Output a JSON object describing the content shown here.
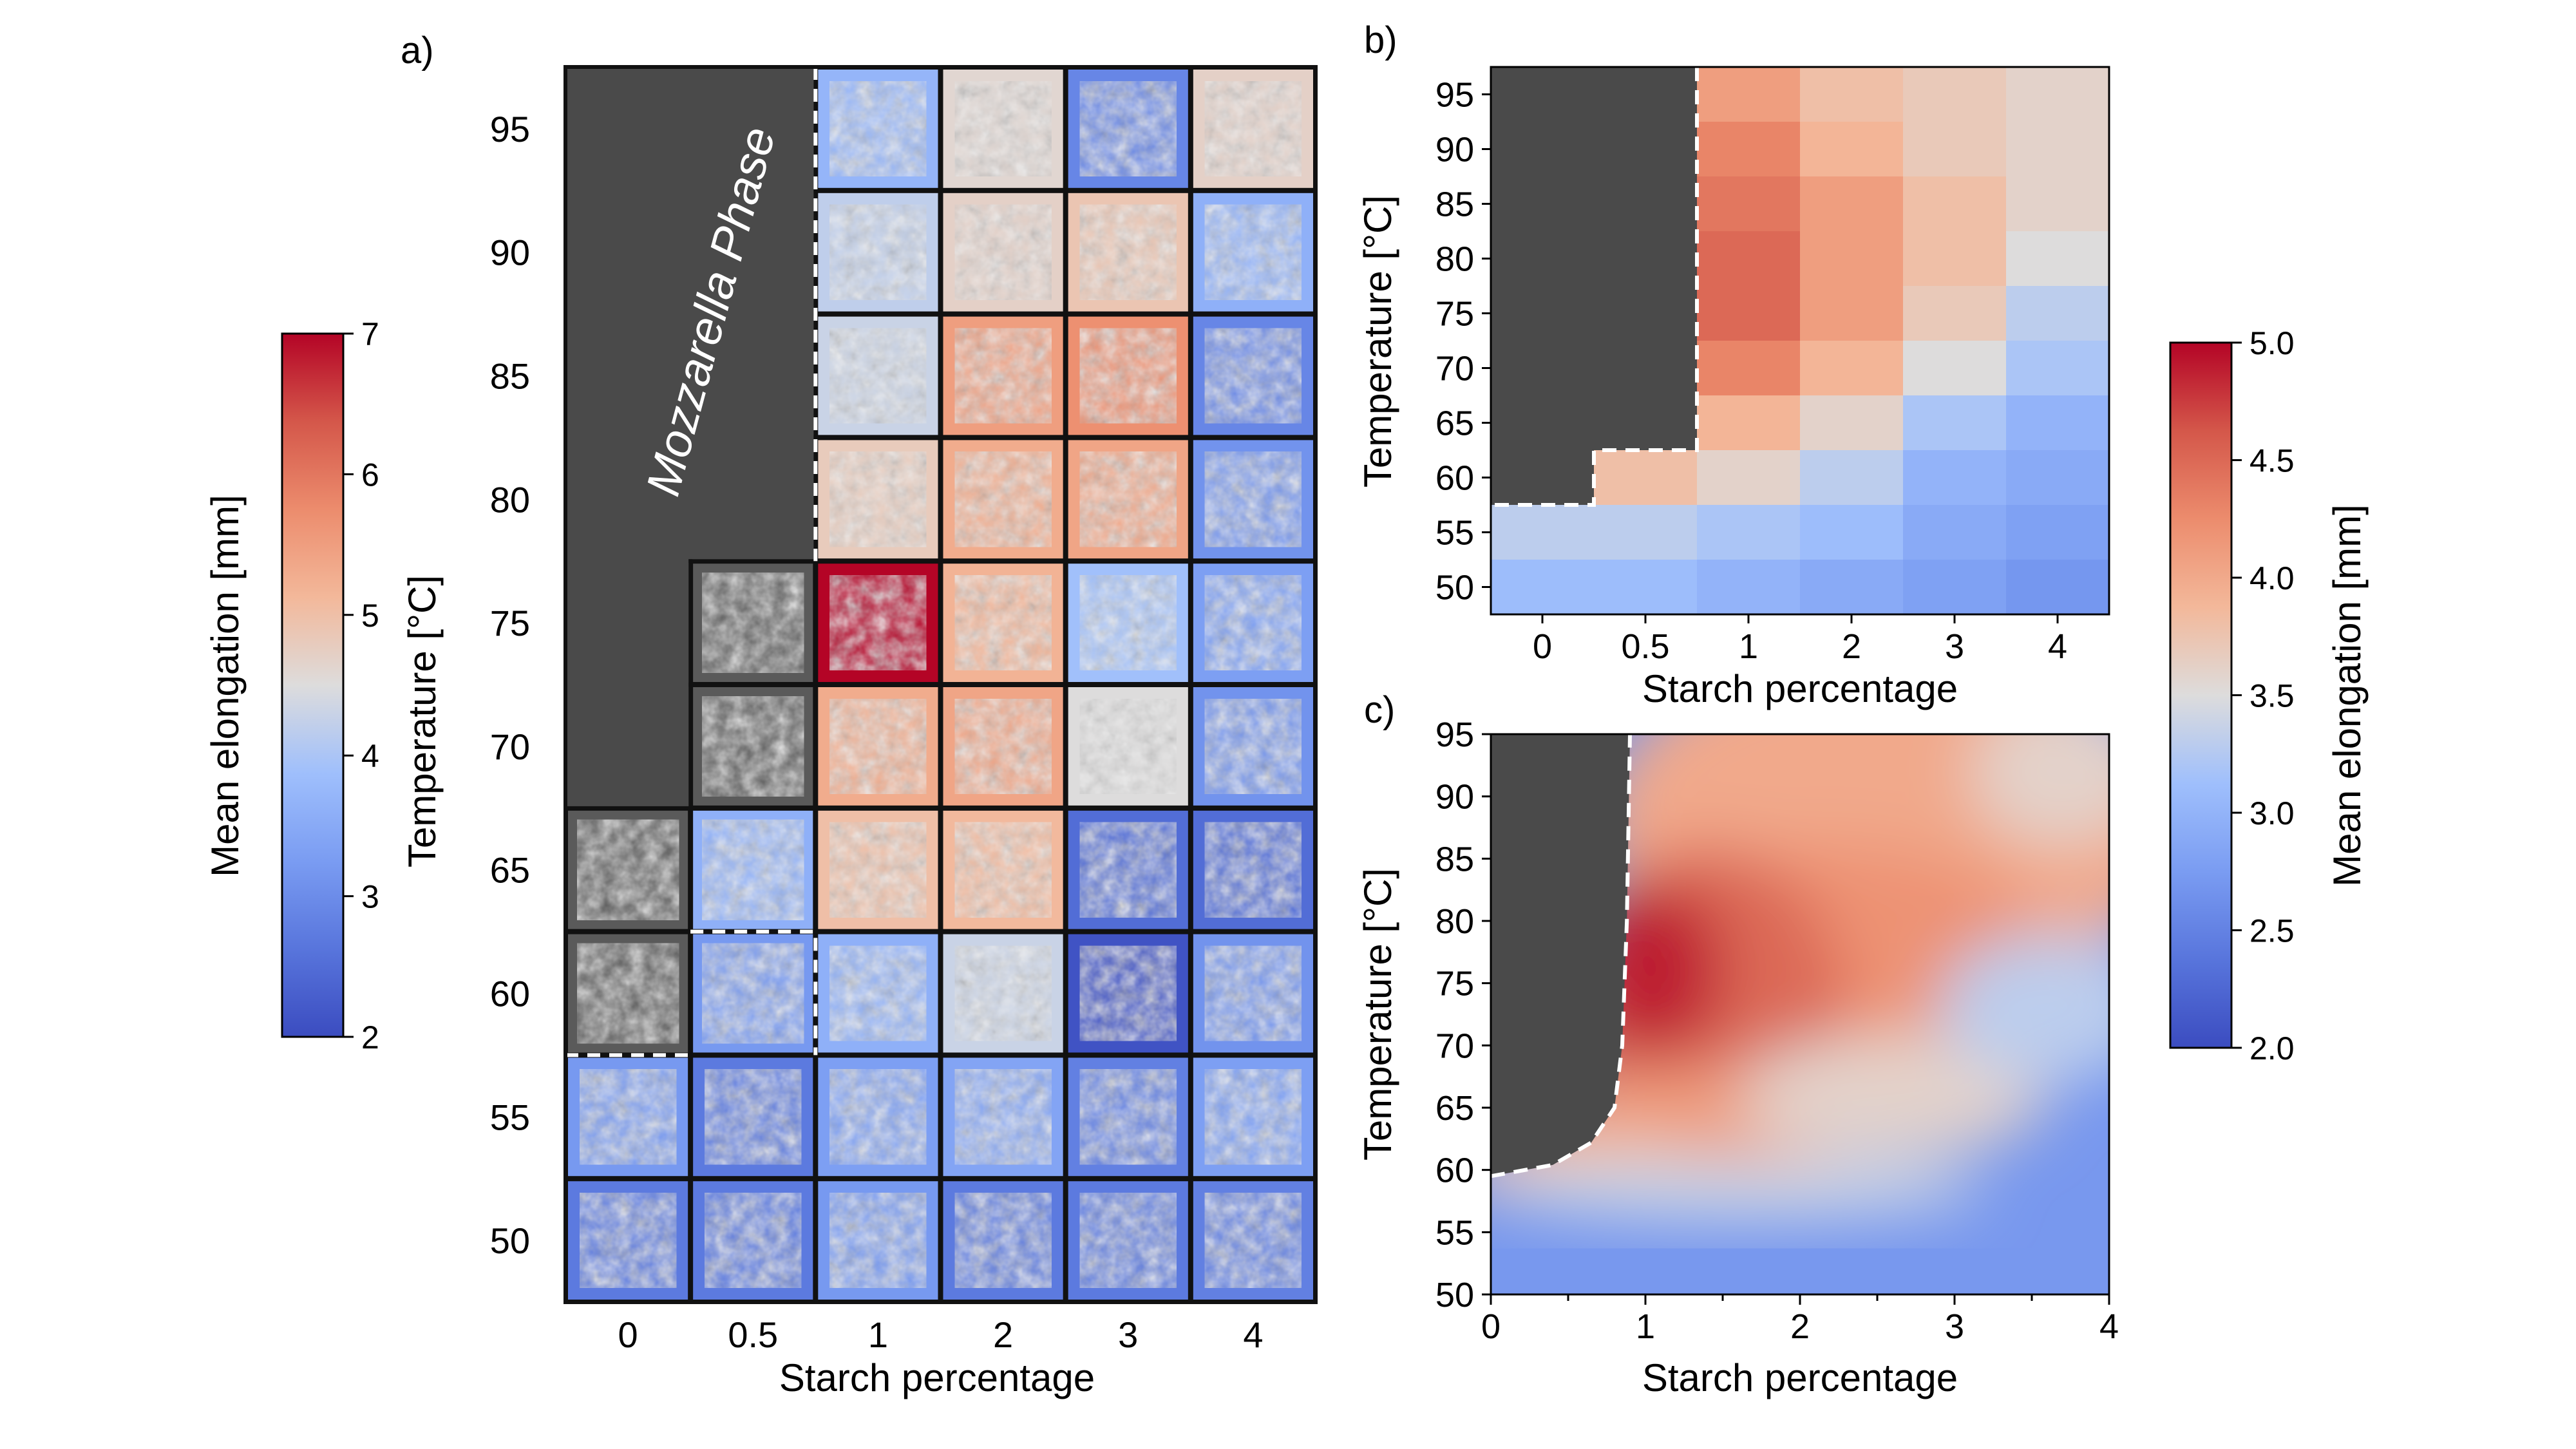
{
  "colors": {
    "cold": "#3b4cc0",
    "neutral": "#dddcdc",
    "warm": "#b40426",
    "mozzarella": "#4a4a4a",
    "boundary": "#ffffff"
  },
  "chart_data": [
    {
      "panel": "a",
      "panel_label": "a)",
      "type": "heatmap",
      "title": "",
      "xlabel": "Starch percentage",
      "ylabel": "Temperature [°C]",
      "x_categories": [
        "0",
        "0.5",
        "1",
        "2",
        "3",
        "4"
      ],
      "y_categories": [
        "95",
        "90",
        "85",
        "80",
        "75",
        "70",
        "65",
        "60",
        "55",
        "50"
      ],
      "region_label": "Mozzarella Phase",
      "mozzarella_cells": [
        [
          0,
          0
        ],
        [
          0,
          1
        ],
        [
          0,
          2
        ],
        [
          0,
          3
        ],
        [
          0,
          4
        ],
        [
          0,
          5
        ],
        [
          1,
          0
        ],
        [
          1,
          1
        ],
        [
          1,
          2
        ],
        [
          1,
          3
        ]
      ],
      "cell_texture": "grayscale micrograph thumbnail inside each coloured frame",
      "values_mm": [
        [
          null,
          null,
          3.7,
          4.6,
          2.9,
          4.7
        ],
        [
          null,
          null,
          4.2,
          4.7,
          4.9,
          3.6
        ],
        [
          null,
          null,
          4.3,
          5.5,
          5.7,
          2.9
        ],
        [
          null,
          null,
          4.8,
          5.3,
          5.4,
          3.1
        ],
        [
          null,
          3.6,
          7.0,
          5.2,
          3.9,
          3.3
        ],
        [
          null,
          3.6,
          5.3,
          5.4,
          4.5,
          3.1
        ],
        [
          3.5,
          3.6,
          5.0,
          5.1,
          2.5,
          2.5
        ],
        [
          3.5,
          3.2,
          3.6,
          4.3,
          2.1,
          3.1
        ],
        [
          3.2,
          2.7,
          3.3,
          3.4,
          2.8,
          3.3
        ],
        [
          2.7,
          2.7,
          3.2,
          2.7,
          2.7,
          2.8
        ]
      ],
      "colorbar": {
        "label": "Mean elongation [mm]",
        "ticks": [
          "2",
          "3",
          "4",
          "5",
          "6",
          "7"
        ],
        "range": [
          2,
          7
        ],
        "colormap": "coolwarm",
        "position": "left"
      }
    },
    {
      "panel": "b",
      "panel_label": "b)",
      "type": "heatmap",
      "title": "",
      "xlabel": "Starch percentage",
      "ylabel": "Temperature [°C]",
      "x_ticks": [
        "0",
        "0.5",
        "1",
        "2",
        "3",
        "4"
      ],
      "y_ticks": [
        "95",
        "90",
        "85",
        "80",
        "75",
        "70",
        "65",
        "60",
        "55",
        "50"
      ],
      "mozzarella_boundary": "dashed white line",
      "values_mm": [
        [
          null,
          null,
          4.1,
          3.8,
          3.7,
          3.6
        ],
        [
          null,
          null,
          4.3,
          3.9,
          3.7,
          3.6
        ],
        [
          null,
          null,
          4.4,
          4.1,
          3.8,
          3.6
        ],
        [
          null,
          null,
          4.5,
          4.1,
          3.8,
          3.5
        ],
        [
          null,
          null,
          4.5,
          4.1,
          3.7,
          3.3
        ],
        [
          null,
          null,
          4.3,
          3.9,
          3.5,
          3.2
        ],
        [
          null,
          null,
          3.9,
          3.6,
          3.2,
          3.0
        ],
        [
          null,
          3.8,
          3.6,
          3.3,
          3.0,
          2.9
        ],
        [
          3.3,
          3.3,
          3.2,
          3.1,
          2.9,
          2.8
        ],
        [
          3.1,
          3.1,
          3.0,
          2.9,
          2.8,
          2.7
        ]
      ]
    },
    {
      "panel": "c",
      "panel_label": "c)",
      "type": "heatmap",
      "title": "",
      "xlabel": "Starch percentage",
      "ylabel": "Temperature [°C]",
      "x_ticks": [
        "0",
        "1",
        "2",
        "3",
        "4"
      ],
      "y_ticks": [
        "95",
        "90",
        "85",
        "80",
        "75",
        "70",
        "65",
        "60",
        "55",
        "50"
      ],
      "xlim": [
        0,
        4
      ],
      "ylim": [
        50,
        95
      ],
      "interpolated": true,
      "mozzarella_boundary": [
        [
          0,
          59.5
        ],
        [
          0.4,
          60.4
        ],
        [
          0.65,
          62.2
        ],
        [
          0.8,
          65
        ],
        [
          0.85,
          70
        ],
        [
          0.88,
          80
        ],
        [
          0.9,
          95
        ]
      ],
      "peak": {
        "x": 1.0,
        "y": 75,
        "value": 4.8
      },
      "colorbar": {
        "label": "Mean elongation [mm]",
        "ticks": [
          "2.0",
          "2.5",
          "3.0",
          "3.5",
          "4.0",
          "4.5",
          "5.0"
        ],
        "range": [
          2.0,
          5.0
        ],
        "colormap": "coolwarm",
        "position": "right"
      }
    }
  ]
}
